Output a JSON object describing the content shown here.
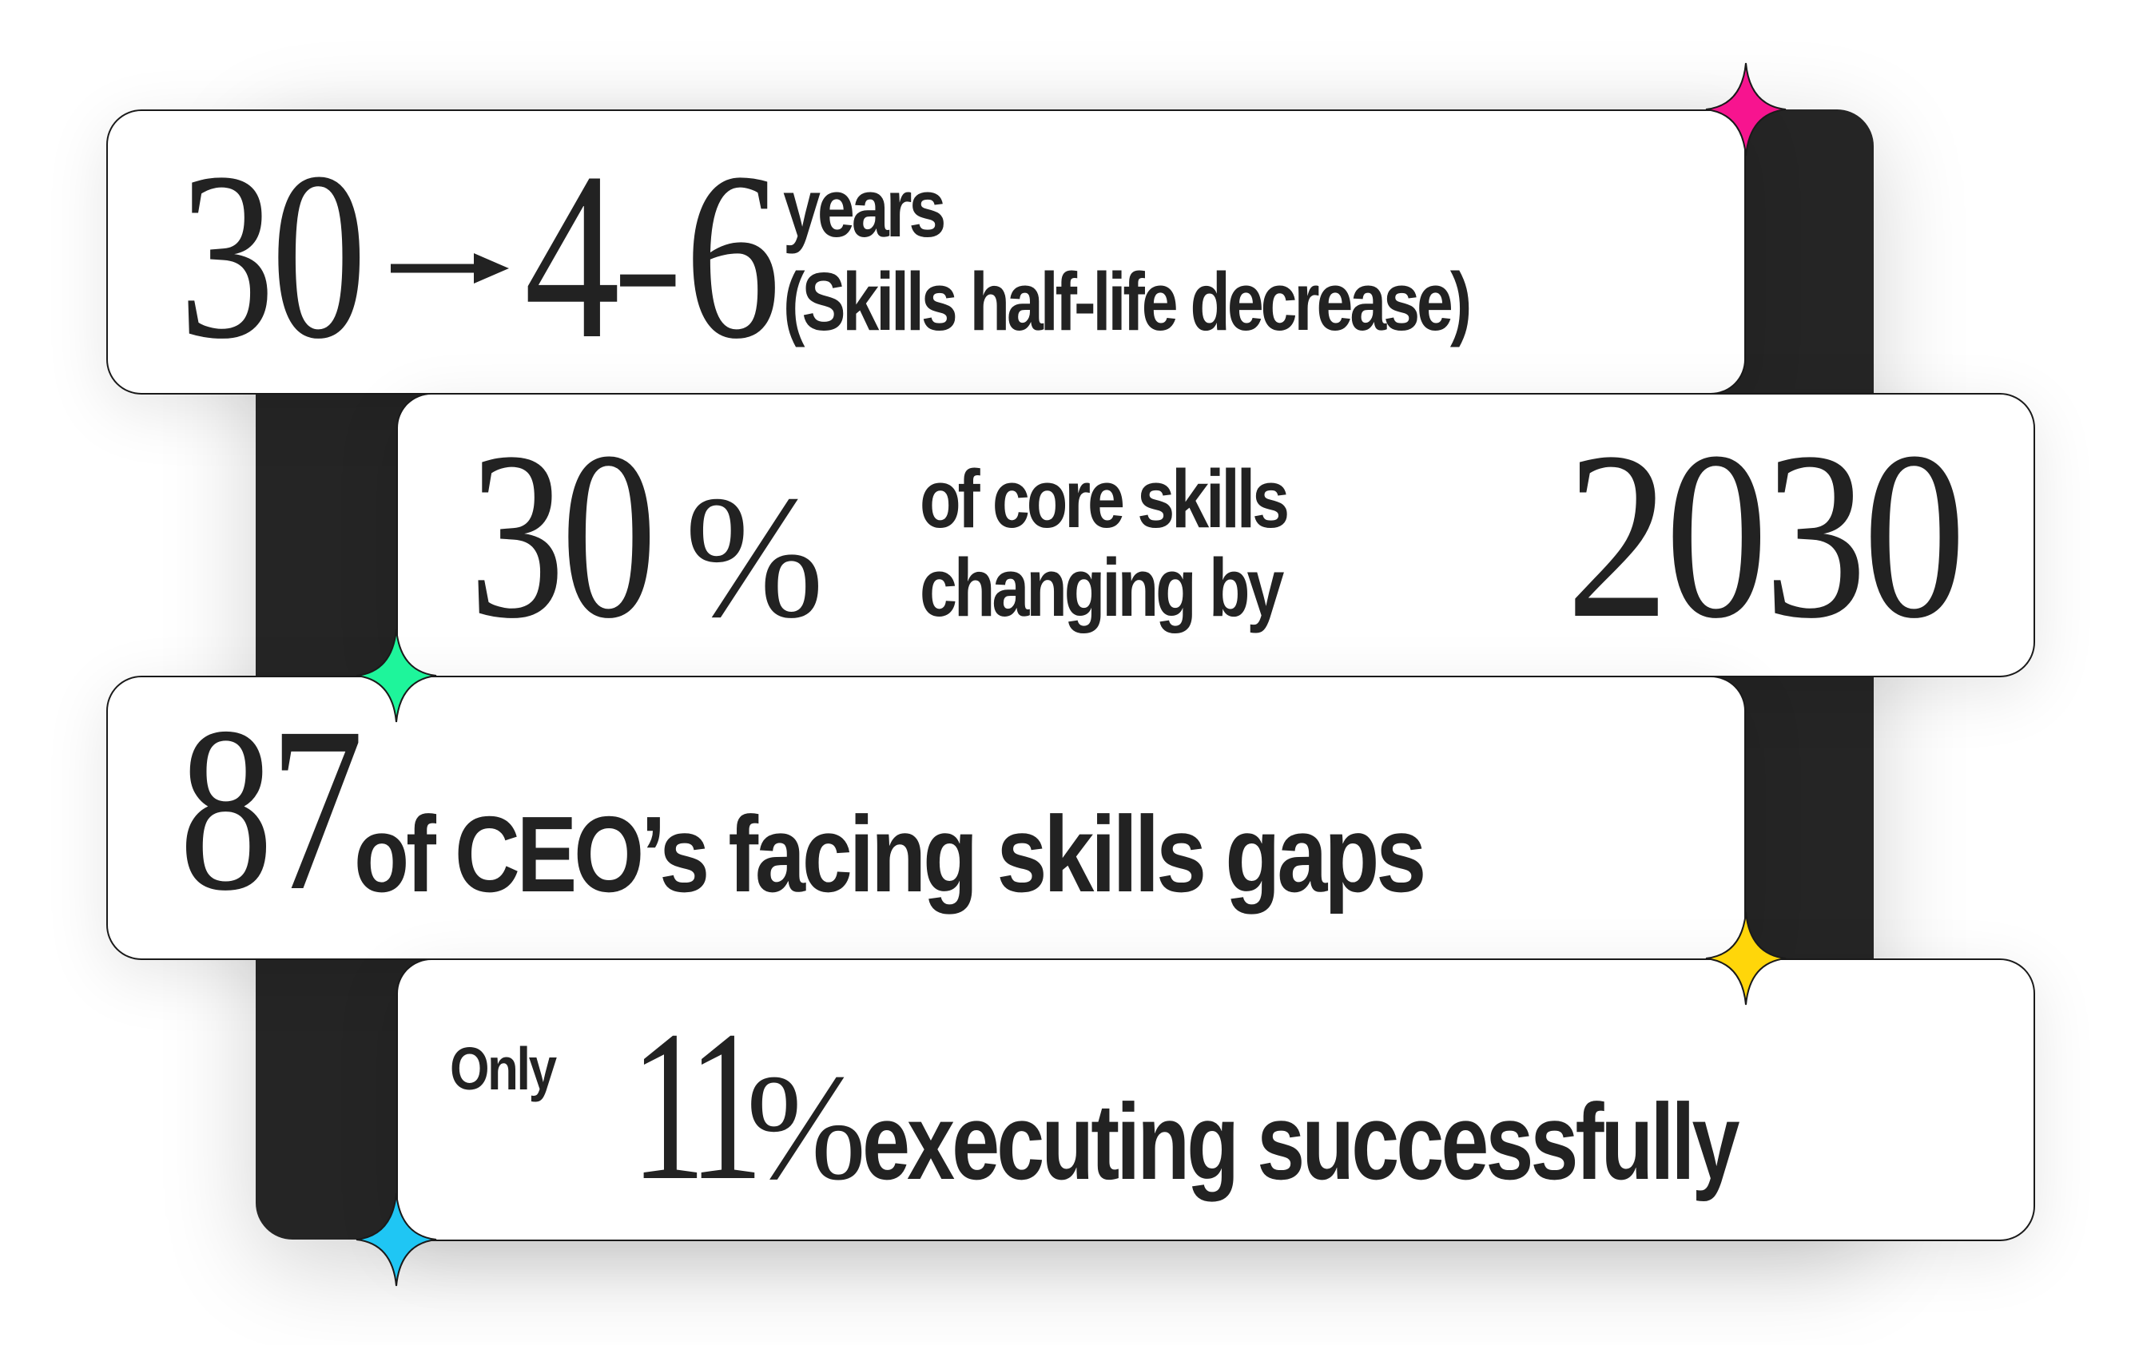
{
  "stats": [
    {
      "from": "30",
      "to_low": "4",
      "dash": "–",
      "to_high": "6",
      "unit": "years",
      "caption": "(Skills half-life decrease)"
    },
    {
      "number": "30",
      "percent": "%",
      "line1": "of core skills",
      "line2": "changing by",
      "year": "2030"
    },
    {
      "number": "87",
      "caption": "of CEO’s facing skills gaps"
    },
    {
      "prefix": "Only",
      "number": "11",
      "percent": "%",
      "caption": "executing successfully"
    }
  ],
  "colors": {
    "dark": "#252525",
    "sparkle_pink": "#f7148f",
    "sparkle_green": "#1ef59b",
    "sparkle_yellow": "#ffd60a",
    "sparkle_cyan": "#1fc6f4"
  },
  "icons": [
    "arrow-right-icon",
    "sparkle-icon"
  ]
}
